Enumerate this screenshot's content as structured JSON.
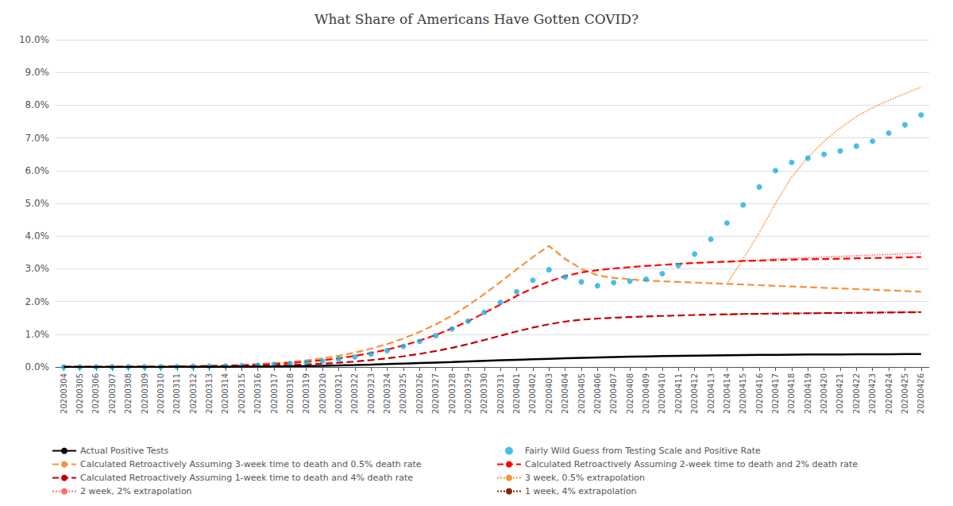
{
  "chart_data": {
    "type": "line",
    "title": "What Share of Americans Have Gotten COVID?",
    "categories": [
      "20200304",
      "20200305",
      "20200306",
      "20200307",
      "20200308",
      "20200309",
      "20200310",
      "20200311",
      "20200312",
      "20200313",
      "20200314",
      "20200315",
      "20200316",
      "20200317",
      "20200318",
      "20200319",
      "20200320",
      "20200321",
      "20200322",
      "20200323",
      "20200324",
      "20200325",
      "20200326",
      "20200327",
      "20200328",
      "20200329",
      "20200330",
      "20200331",
      "20200401",
      "20200402",
      "20200403",
      "20200404",
      "20200405",
      "20200406",
      "20200407",
      "20200408",
      "20200409",
      "20200410",
      "20200411",
      "20200412",
      "20200413",
      "20200414",
      "20200415",
      "20200416",
      "20200417",
      "20200418",
      "20200419",
      "20200420",
      "20200421",
      "20200422",
      "20200423",
      "20200424",
      "20200425",
      "20200426"
    ],
    "series": [
      {
        "name": "Actual Positive Tests",
        "color": "#000000",
        "type": "line",
        "line_style": "solid",
        "values": [
          3e-06,
          5e-06,
          7e-06,
          9e-06,
          1.2e-05,
          1.6e-05,
          2.2e-05,
          3.1e-05,
          4.3e-05,
          5.8e-05,
          7.8e-05,
          0.000104,
          0.00014,
          0.000185,
          0.000241,
          0.00031,
          0.000393,
          0.00049,
          0.000605,
          0.000738,
          0.000882,
          0.00104,
          0.0012,
          0.001365,
          0.001534,
          0.001704,
          0.001872,
          0.00204,
          0.0022,
          0.002356,
          0.002506,
          0.002648,
          0.002782,
          0.002908,
          0.003024,
          0.003131,
          0.003228,
          0.003316,
          0.003397,
          0.00347,
          0.003535,
          0.003593,
          0.003644,
          0.003689,
          0.003729,
          0.003764,
          0.003795,
          0.003822,
          0.003846,
          0.003867,
          0.003885,
          0.003901,
          0.003915,
          0.003927
        ]
      },
      {
        "name": "Fairly Wild Guess from Testing Scale and Positive Rate",
        "color": "#1BAEE1",
        "type": "scatter",
        "marker": "circle",
        "values": [
          1e-05,
          1.5e-05,
          2.1e-05,
          3e-05,
          4.2e-05,
          5.8e-05,
          8.2e-05,
          0.000114,
          0.000158,
          0.000218,
          0.0003,
          0.000412,
          0.000564,
          0.000765,
          0.00103,
          0.001375,
          0.00182,
          0.00239,
          0.0031,
          0.00398,
          0.00504,
          0.00631,
          0.00782,
          0.00959,
          0.01165,
          0.014,
          0.0167,
          0.0197,
          0.023,
          0.0265,
          0.0297,
          0.0275,
          0.026,
          0.0248,
          0.0258,
          0.0262,
          0.0268,
          0.0285,
          0.031,
          0.0345,
          0.039,
          0.044,
          0.0495,
          0.055,
          0.06,
          0.0625,
          0.0638,
          0.065,
          0.066,
          0.0675,
          0.069,
          0.0715,
          0.074,
          0.077
        ]
      },
      {
        "name": "Calculated Retroactively Assuming 3-week time to death and 0.5% death rate",
        "color": "#F4933B",
        "type": "line",
        "line_style": "dashed",
        "values": [
          2e-05,
          2.8e-05,
          4e-05,
          5.5e-05,
          7.6e-05,
          0.000104,
          0.000143,
          0.000196,
          0.000268,
          0.000364,
          0.00049,
          0.000658,
          0.00088,
          0.00117,
          0.00155,
          0.00204,
          0.00266,
          0.00344,
          0.00441,
          0.00558,
          0.007,
          0.0087,
          0.0107,
          0.013,
          0.0157,
          0.0188,
          0.0223,
          0.026,
          0.0298,
          0.0336,
          0.037,
          0.033,
          0.03,
          0.028,
          0.0272,
          0.0268,
          0.0264,
          0.0262,
          0.026,
          0.0258,
          0.0256,
          0.0254,
          0.0252,
          0.025,
          0.0248,
          0.0246,
          0.0244,
          0.0242,
          0.024,
          0.0238,
          0.0236,
          0.0234,
          0.0232,
          0.023
        ]
      },
      {
        "name": "Calculated Retroactively Assuming 2-week time to death and 2% death rate",
        "color": "#FF0000",
        "type": "line",
        "line_style": "dashed",
        "values": [
          1.6e-05,
          2.2e-05,
          3.1e-05,
          4.3e-05,
          5.9e-05,
          8.1e-05,
          0.000112,
          0.000153,
          0.000209,
          0.000284,
          0.000382,
          0.000513,
          0.000685,
          0.000907,
          0.0012,
          0.001575,
          0.00205,
          0.00264,
          0.00337,
          0.00427,
          0.00532,
          0.00658,
          0.00806,
          0.00978,
          0.01176,
          0.01398,
          0.0165,
          0.0191,
          0.0217,
          0.0241,
          0.0261,
          0.0278,
          0.0289,
          0.0296,
          0.0301,
          0.0305,
          0.0309,
          0.0312,
          0.0315,
          0.0318,
          0.032,
          0.0322,
          0.0324,
          0.0325,
          0.0327,
          0.0328,
          0.0329,
          0.033,
          0.0331,
          0.0332,
          0.0333,
          0.0334,
          0.0335,
          0.0336
        ]
      },
      {
        "name": "Calculated Retroactively Assuming 1-week time to death and 4% death rate",
        "color": "#C00000",
        "type": "line",
        "line_style": "dashed",
        "values": [
          8e-06,
          1.1e-05,
          1.5e-05,
          2.1e-05,
          2.9e-05,
          4e-05,
          5.5e-05,
          7.5e-05,
          0.000103,
          0.00014,
          0.000188,
          0.000252,
          0.000337,
          0.000448,
          0.000593,
          0.000779,
          0.001015,
          0.001305,
          0.001665,
          0.00211,
          0.00264,
          0.00327,
          0.00401,
          0.00487,
          0.00586,
          0.00699,
          0.00825,
          0.00955,
          0.01085,
          0.01205,
          0.01305,
          0.0139,
          0.01445,
          0.0148,
          0.01505,
          0.01525,
          0.01545,
          0.0156,
          0.01575,
          0.0159,
          0.016,
          0.0161,
          0.0162,
          0.01625,
          0.0163,
          0.01635,
          0.0164,
          0.01645,
          0.0165,
          0.01655,
          0.0166,
          0.01665,
          0.0167,
          0.01675
        ]
      },
      {
        "name": "3 week, 0.5% extrapolation",
        "color": "#F4933B",
        "type": "line",
        "line_style": "dotted",
        "values": [
          null,
          null,
          null,
          null,
          null,
          null,
          null,
          null,
          null,
          null,
          null,
          null,
          null,
          null,
          null,
          null,
          null,
          null,
          null,
          null,
          null,
          null,
          null,
          null,
          null,
          null,
          null,
          null,
          null,
          null,
          null,
          null,
          null,
          null,
          null,
          null,
          null,
          null,
          null,
          null,
          null,
          0.0254,
          0.033,
          0.041,
          0.05,
          0.058,
          0.064,
          0.069,
          0.073,
          0.0765,
          0.0792,
          0.0815,
          0.0835,
          0.0855
        ]
      },
      {
        "name": "2 week, 2% extrapolation",
        "color": "#FF6B6B",
        "type": "line",
        "line_style": "dotted",
        "values": [
          null,
          null,
          null,
          null,
          null,
          null,
          null,
          null,
          null,
          null,
          null,
          null,
          null,
          null,
          null,
          null,
          null,
          null,
          null,
          null,
          null,
          null,
          null,
          null,
          null,
          null,
          null,
          null,
          null,
          null,
          null,
          null,
          null,
          null,
          null,
          null,
          null,
          null,
          null,
          null,
          null,
          0.032,
          0.0324,
          0.0327,
          0.033,
          0.0332,
          0.0334,
          0.0336,
          0.0338,
          0.034,
          0.0342,
          0.0344,
          0.0346,
          0.0348
        ]
      },
      {
        "name": "1 week, 4% extrapolation",
        "color": "#8B2500",
        "type": "line",
        "line_style": "dotted",
        "values": [
          null,
          null,
          null,
          null,
          null,
          null,
          null,
          null,
          null,
          null,
          null,
          null,
          null,
          null,
          null,
          null,
          null,
          null,
          null,
          null,
          null,
          null,
          null,
          null,
          null,
          null,
          null,
          null,
          null,
          null,
          null,
          null,
          null,
          null,
          null,
          null,
          null,
          null,
          null,
          null,
          null,
          0.016,
          0.0162,
          0.0163,
          0.01635,
          0.0164,
          0.01645,
          0.0165,
          0.01655,
          0.0166,
          0.01665,
          0.0167,
          0.01675,
          0.0168
        ]
      }
    ],
    "ylim": [
      0,
      0.1
    ],
    "yticks": [
      {
        "value": 0.0,
        "label": "0.0%"
      },
      {
        "value": 0.01,
        "label": "1.0%"
      },
      {
        "value": 0.02,
        "label": "2.0%"
      },
      {
        "value": 0.03,
        "label": "3.0%"
      },
      {
        "value": 0.04,
        "label": "4.0%"
      },
      {
        "value": 0.05,
        "label": "5.0%"
      },
      {
        "value": 0.06,
        "label": "6.0%"
      },
      {
        "value": 0.07,
        "label": "7.0%"
      },
      {
        "value": 0.08,
        "label": "8.0%"
      },
      {
        "value": 0.09,
        "label": "9.0%"
      },
      {
        "value": 0.1,
        "label": "10.0%"
      }
    ],
    "grid": true,
    "legend": "bottom"
  }
}
